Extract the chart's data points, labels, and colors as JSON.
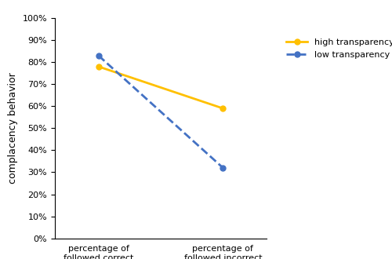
{
  "high_transparency": [
    0.78,
    0.59
  ],
  "low_transparency": [
    0.83,
    0.32
  ],
  "x_labels": [
    "percentage of\nfollowed correct\nrecommendations",
    "percentage of\nfollowed incorrect\nrecommendations\n(complacency)"
  ],
  "ylabel": "complacency behavior",
  "ylim": [
    0,
    1.0
  ],
  "yticks": [
    0.0,
    0.1,
    0.2,
    0.3,
    0.4,
    0.5,
    0.6,
    0.7,
    0.8,
    0.9,
    1.0
  ],
  "high_color": "#FFC000",
  "low_color": "#4472C4",
  "legend_labels": [
    "high transparency",
    "low transparency"
  ],
  "marker_size": 5,
  "line_width": 2.0,
  "figsize": [
    5.0,
    3.3
  ],
  "dpi": 100
}
